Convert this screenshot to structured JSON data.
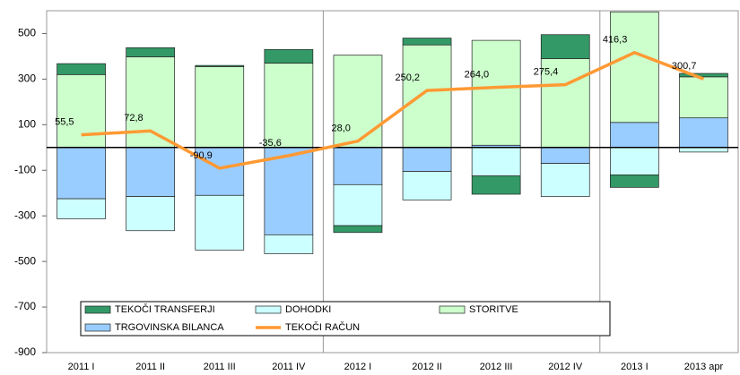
{
  "chart_data": {
    "type": "bar",
    "stacked": true,
    "categories": [
      "2011 I",
      "2011 II",
      "2011 III",
      "2011 IV",
      "2012 I",
      "2012 II",
      "2012 III",
      "2012 IV",
      "2013 I",
      "2013 apr"
    ],
    "series": [
      {
        "name": "TRGOVINSKA BILANCA",
        "color": "#99ccff",
        "values": [
          -225,
          -215,
          -210,
          -383,
          -163,
          -105,
          10,
          -70,
          110,
          130
        ]
      },
      {
        "name": "DOHODKI",
        "color": "#ccffff",
        "values": [
          -88,
          -150,
          -240,
          -83,
          -180,
          -125,
          -125,
          -145,
          -120,
          -20
        ]
      },
      {
        "name": "STORITVE",
        "color": "#ccffcc",
        "values": [
          320,
          398,
          355,
          370,
          405,
          450,
          460,
          390,
          485,
          180
        ]
      },
      {
        "name": "TEKOČI TRANSFERJI",
        "color": "#339966",
        "values": [
          48,
          40,
          5,
          60,
          -30,
          30,
          -80,
          105,
          -55,
          15
        ]
      }
    ],
    "line": {
      "name": "TEKOČI RAČUN",
      "color": "#ff9933",
      "values": [
        55.5,
        72.8,
        -90.9,
        -35.6,
        28.0,
        250.2,
        264.0,
        275.4,
        416.3,
        300.7
      ],
      "value_labels": [
        "55,5",
        "72,8",
        "-90,9",
        "-35,6",
        "28,0",
        "250,2",
        "264,0",
        "275,4",
        "416,3",
        "300,7"
      ]
    },
    "ylim": [
      -900,
      600
    ],
    "yticks": [
      -900,
      -700,
      -500,
      -300,
      -100,
      100,
      300,
      500
    ],
    "grid": false
  }
}
